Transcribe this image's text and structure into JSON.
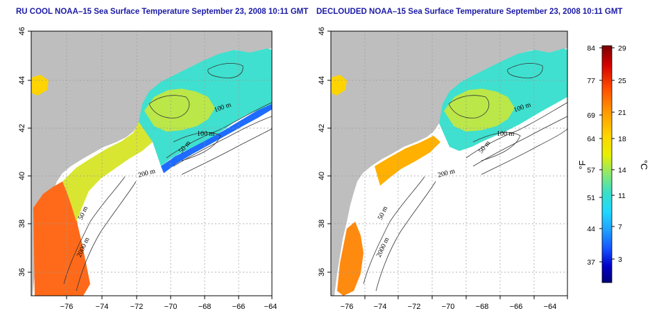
{
  "maps": [
    {
      "title": "RU COOL NOAA–15 Sea Surface Temperature September 23, 2008 10:11 GMT",
      "contour_labels": [
        "100 m",
        "100 m",
        "50 m",
        "200 m",
        "50 m",
        "2000 m"
      ]
    },
    {
      "title": "DECLOUDED NOAA–15 Sea Surface Temperature September 23, 2008 10:11 GMT",
      "contour_labels": [
        "100 m",
        "100 m",
        "50 m",
        "200 m",
        "50 m",
        "2000 m"
      ]
    }
  ],
  "axes": {
    "lon_ticks": [
      "−76",
      "−74",
      "−72",
      "−70",
      "−68",
      "−66",
      "−64"
    ],
    "lat_ticks": [
      "36",
      "38",
      "40",
      "42",
      "44",
      "46"
    ]
  },
  "colorbar": {
    "fahrenheit_label": "°F",
    "celsius_label": "°C",
    "fahrenheit_ticks": [
      "84",
      "77",
      "69",
      "64",
      "57",
      "51",
      "44",
      "37"
    ],
    "celsius_ticks": [
      "29",
      "25",
      "21",
      "18",
      "14",
      "11",
      "7",
      "3"
    ],
    "colors": [
      "#7a0000",
      "#d40000",
      "#ff4d00",
      "#ff9a00",
      "#ffd400",
      "#e8f000",
      "#8ce86c",
      "#38e0c8",
      "#20d8ff",
      "#1ea0ff",
      "#1450ff",
      "#0000c8",
      "#00007a"
    ]
  },
  "colors": {
    "land": "#bebebe",
    "title": "#1a1aa6"
  }
}
